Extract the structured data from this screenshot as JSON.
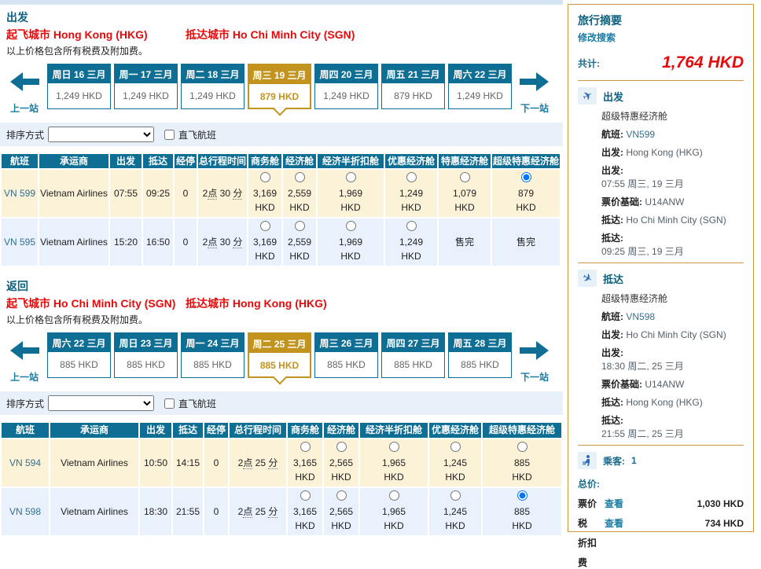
{
  "labels": {
    "prev": "上一站",
    "next": "下一站",
    "sort": "排序方式",
    "direct": "直飞航班",
    "soldout": "售完",
    "currency": "HKD"
  },
  "depart": {
    "title": "出发",
    "from_label": "起飞城市",
    "from": "Hong Kong (HKG)",
    "to_label": "抵达城市",
    "to": "Ho Chi Minh City (SGN)",
    "note": "以上价格包含所有税费及附加费。",
    "tabs": [
      {
        "day": "周日",
        "date": "16 三月",
        "price": "1,249 HKD",
        "selected": false
      },
      {
        "day": "周一",
        "date": "17 三月",
        "price": "1,249 HKD",
        "selected": false
      },
      {
        "day": "周二",
        "date": "18 三月",
        "price": "1,249 HKD",
        "selected": false
      },
      {
        "day": "周三",
        "date": "19 三月",
        "price": "879 HKD",
        "selected": true
      },
      {
        "day": "周四",
        "date": "20 三月",
        "price": "1,249 HKD",
        "selected": false
      },
      {
        "day": "周五",
        "date": "21 三月",
        "price": "879 HKD",
        "selected": false
      },
      {
        "day": "周六",
        "date": "22 三月",
        "price": "1,249 HKD",
        "selected": false
      }
    ],
    "table": {
      "columns": [
        "航班",
        "承运商",
        "出发",
        "抵达",
        "经停",
        "总行程时间",
        "商务舱",
        "经济舱",
        "经济半折扣舱",
        "优惠经济舱",
        "特惠经济舱",
        "超级特惠经济舱"
      ],
      "rows": [
        {
          "flight": "VN 599",
          "carrier": "Vietnam Airlines",
          "dep": "07:55",
          "arr": "09:25",
          "stops": "0",
          "duration": "2点 30 分",
          "highlight": true,
          "fares": [
            {
              "price": "3,169"
            },
            {
              "price": "2,559"
            },
            {
              "price": "1,969"
            },
            {
              "price": "1,249"
            },
            {
              "price": "1,079"
            },
            {
              "price": "879",
              "selected": true
            }
          ]
        },
        {
          "flight": "VN 595",
          "carrier": "Vietnam Airlines",
          "dep": "15:20",
          "arr": "16:50",
          "stops": "0",
          "duration": "2点 30 分",
          "highlight": false,
          "fares": [
            {
              "price": "3,169"
            },
            {
              "price": "2,559"
            },
            {
              "price": "1,969"
            },
            {
              "price": "1,249"
            },
            {
              "soldout": true
            },
            {
              "soldout": true
            }
          ]
        }
      ]
    }
  },
  "return": {
    "title": "返回",
    "from_label": "起飞城市",
    "from": "Ho Chi Minh City (SGN)",
    "to_label": "抵达城市",
    "to": "Hong Kong (HKG)",
    "note": "以上价格包含所有税费及附加费。",
    "tabs": [
      {
        "day": "周六",
        "date": "22 三月",
        "price": "885 HKD",
        "selected": false
      },
      {
        "day": "周日",
        "date": "23 三月",
        "price": "885 HKD",
        "selected": false
      },
      {
        "day": "周一",
        "date": "24 三月",
        "price": "885 HKD",
        "selected": false
      },
      {
        "day": "周二",
        "date": "25 三月",
        "price": "885 HKD",
        "selected": true
      },
      {
        "day": "周三",
        "date": "26 三月",
        "price": "885 HKD",
        "selected": false
      },
      {
        "day": "周四",
        "date": "27 三月",
        "price": "885 HKD",
        "selected": false
      },
      {
        "day": "周五",
        "date": "28 三月",
        "price": "885 HKD",
        "selected": false
      }
    ],
    "table": {
      "columns": [
        "航班",
        "承运商",
        "出发",
        "抵达",
        "经停",
        "总行程时间",
        "商务舱",
        "经济舱",
        "经济半折扣舱",
        "优惠经济舱",
        "超级特惠经济舱"
      ],
      "rows": [
        {
          "flight": "VN 594",
          "carrier": "Vietnam Airlines",
          "dep": "10:50",
          "arr": "14:15",
          "stops": "0",
          "duration": "2点 25 分",
          "highlight": true,
          "fares": [
            {
              "price": "3,165"
            },
            {
              "price": "2,565"
            },
            {
              "price": "1,965"
            },
            {
              "price": "1,245"
            },
            {
              "price": "885"
            }
          ]
        },
        {
          "flight": "VN 598",
          "carrier": "Vietnam Airlines",
          "dep": "18:30",
          "arr": "21:55",
          "stops": "0",
          "duration": "2点 25 分",
          "highlight": false,
          "fares": [
            {
              "price": "3,165"
            },
            {
              "price": "2,565"
            },
            {
              "price": "1,965"
            },
            {
              "price": "1,245"
            },
            {
              "price": "885",
              "selected": true
            }
          ]
        }
      ]
    }
  },
  "sidebar": {
    "title": "旅行摘要",
    "modify": "修改搜索",
    "total_label": "共计:",
    "total_value": "1,764 HKD",
    "segments": [
      {
        "icon": "plane-takeoff",
        "title": "出发",
        "cabin": "超级特惠经济舱",
        "flight_label": "航班:",
        "flight": "VN599",
        "dep_label": "出发:",
        "dep_city": "Hong Kong (HKG)",
        "dep_time_label": "出发:",
        "dep_time": "07:55 周三, 19 三月",
        "fare_basis_label": "票价基础:",
        "fare_basis": "U14ANW",
        "arr_label": "抵达:",
        "arr_city": "Ho Chi Minh City (SGN)",
        "arr_time_label": "抵达:",
        "arr_time": "09:25 周三, 19 三月"
      },
      {
        "icon": "plane-landing",
        "title": "抵达",
        "cabin": "超级特惠经济舱",
        "flight_label": "航班:",
        "flight": "VN598",
        "dep_label": "出发:",
        "dep_city": "Ho Chi Minh City (SGN)",
        "dep_time_label": "出发:",
        "dep_time": "18:30 周二, 25 三月",
        "fare_basis_label": "票价基础:",
        "fare_basis": "U14ANW",
        "arr_label": "抵达:",
        "arr_city": "Hong Kong (HKG)",
        "arr_time_label": "抵达:",
        "arr_time": "21:55 周二, 25 三月"
      }
    ],
    "passenger_label": "乘客:",
    "passenger_count": "1",
    "total_price_label": "总价:",
    "price_rows": [
      {
        "label": "票价",
        "link": "查看",
        "value": "1,030 HKD"
      },
      {
        "label": "税",
        "link": "查看",
        "value": "734 HKD"
      },
      {
        "label": "折扣",
        "link": "",
        "value": ""
      },
      {
        "label": "费",
        "link": "",
        "value": ""
      }
    ]
  }
}
